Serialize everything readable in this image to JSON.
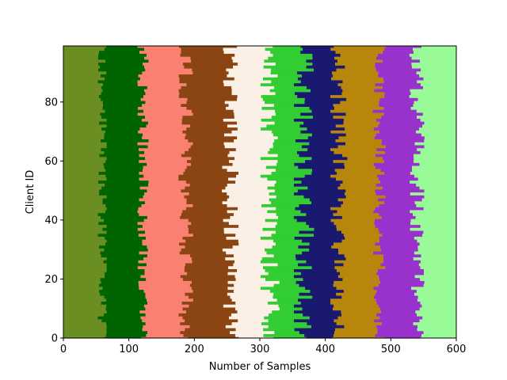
{
  "chart_data": {
    "type": "bar",
    "orientation": "horizontal",
    "stacked": true,
    "title": "",
    "xlabel": "Number of Samples",
    "ylabel": "Client ID",
    "xlim": [
      0,
      600
    ],
    "ylim": [
      0,
      99
    ],
    "xticks": [
      "0",
      "100",
      "200",
      "300",
      "400",
      "500",
      "600"
    ],
    "yticks": [
      "0",
      "20",
      "40",
      "60",
      "80"
    ],
    "client_ids_range": [
      0,
      99
    ],
    "series": [
      {
        "color": "#6b8e23",
        "approx_cumulative_end": 60,
        "approx_range": [
          51,
          66
        ]
      },
      {
        "color": "#006400",
        "approx_cumulative_end": 122,
        "approx_range": [
          113,
          131
        ]
      },
      {
        "color": "#fa8072",
        "approx_cumulative_end": 187,
        "approx_range": [
          175,
          198
        ]
      },
      {
        "color": "#8b4513",
        "approx_cumulative_end": 255,
        "approx_range": [
          242,
          268
        ]
      },
      {
        "color": "#faf0e6",
        "approx_cumulative_end": 315,
        "approx_range": [
          301,
          332
        ]
      },
      {
        "color": "#32cd32",
        "approx_cumulative_end": 365,
        "approx_range": [
          352,
          388
        ]
      },
      {
        "color": "#191970",
        "approx_cumulative_end": 420,
        "approx_range": [
          408,
          436
        ]
      },
      {
        "color": "#b8860b",
        "approx_cumulative_end": 482,
        "approx_range": [
          472,
          493
        ]
      },
      {
        "color": "#9932cc",
        "approx_cumulative_end": 540,
        "approx_range": [
          528,
          552
        ]
      },
      {
        "color": "#98fb98",
        "approx_cumulative_end": 600,
        "approx_range": [
          600,
          600
        ]
      }
    ],
    "grid": false,
    "legend": "none"
  }
}
